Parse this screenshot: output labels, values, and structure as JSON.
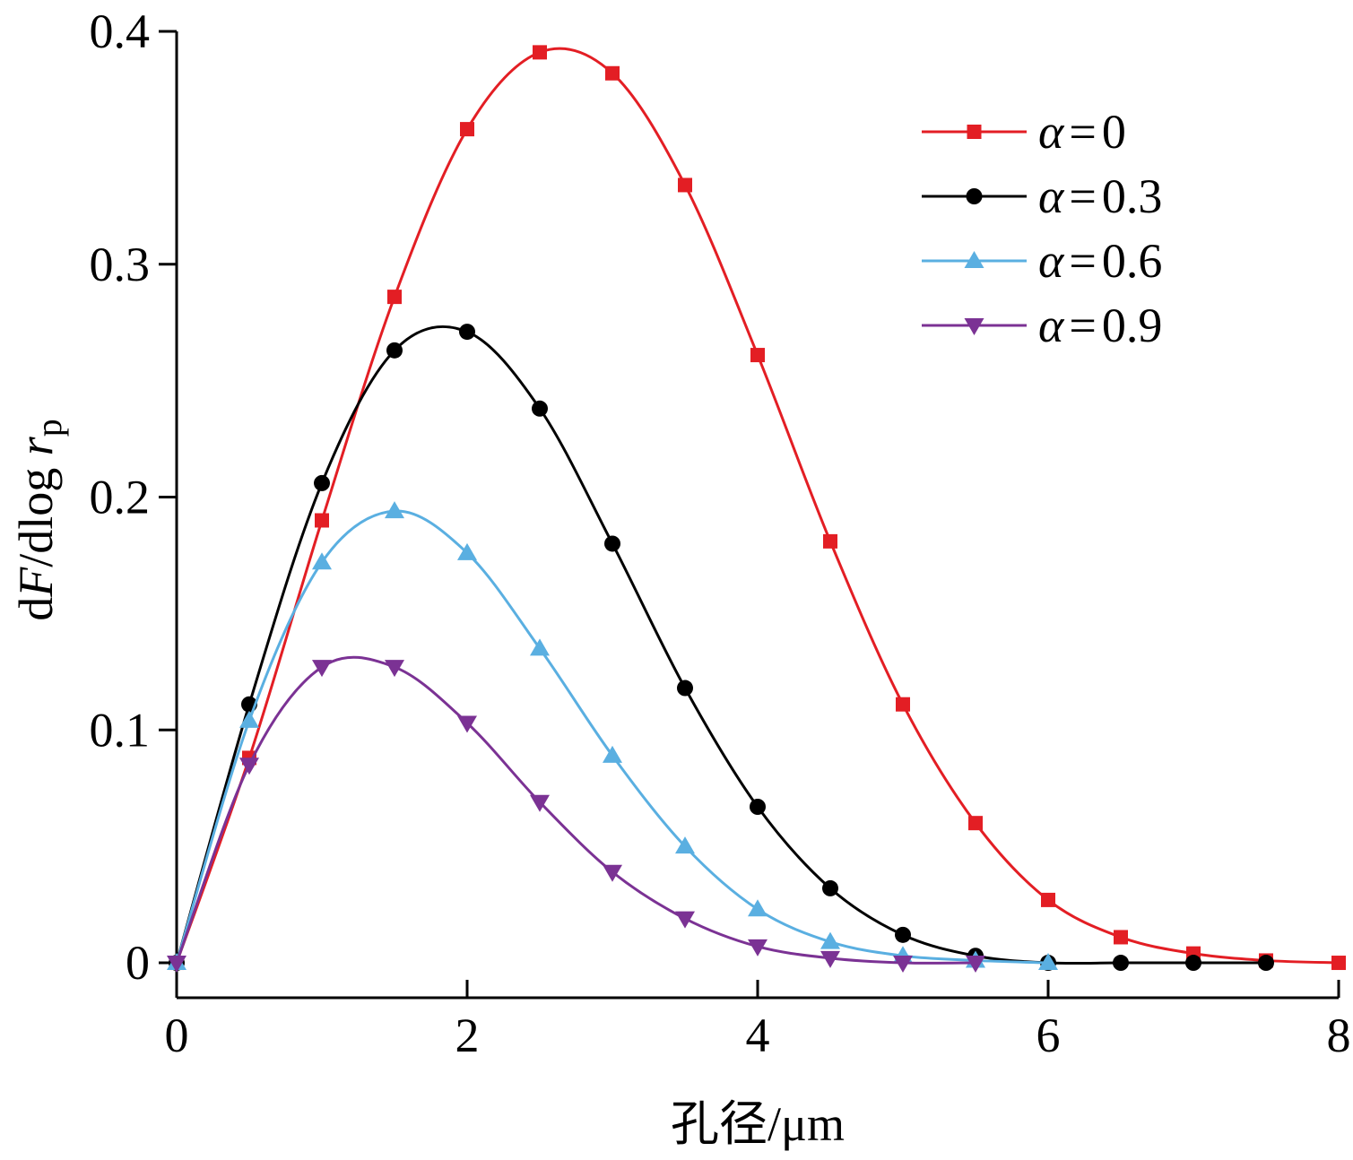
{
  "chart_data": {
    "type": "line",
    "xlabel": "孔径/μm",
    "ylabel_parts": [
      "d",
      "F",
      "/dlog ",
      "r",
      "p"
    ],
    "xlim": [
      0,
      8
    ],
    "ylim": [
      -0.015,
      0.4
    ],
    "x_ticks": [
      0,
      2,
      4,
      6,
      8
    ],
    "x_tick_labels": [
      "0",
      "2",
      "4",
      "6",
      "8"
    ],
    "y_ticks": [
      0,
      0.1,
      0.2,
      0.3,
      0.4
    ],
    "y_tick_labels": [
      "0",
      "0.1",
      "0.2",
      "0.3",
      "0.4"
    ],
    "grid": false,
    "legend_position": "top-right",
    "series": [
      {
        "name": "α = 0",
        "legend_symbol": "α",
        "legend_value": "0",
        "color": "#e31e24",
        "marker": "square",
        "points": [
          [
            0,
            0
          ],
          [
            0.5,
            0.088
          ],
          [
            1,
            0.19
          ],
          [
            1.5,
            0.286
          ],
          [
            2,
            0.358
          ],
          [
            2.5,
            0.391
          ],
          [
            3,
            0.382
          ],
          [
            3.5,
            0.334
          ],
          [
            4,
            0.261
          ],
          [
            4.5,
            0.181
          ],
          [
            5,
            0.111
          ],
          [
            5.5,
            0.06
          ],
          [
            6,
            0.027
          ],
          [
            6.5,
            0.011
          ],
          [
            7,
            0.004
          ],
          [
            7.5,
            0.001
          ],
          [
            8,
            0.0
          ]
        ]
      },
      {
        "name": "α = 0.3",
        "legend_symbol": "α",
        "legend_value": "0.3",
        "color": "#000000",
        "marker": "circle",
        "points": [
          [
            0,
            0
          ],
          [
            0.5,
            0.111
          ],
          [
            1,
            0.206
          ],
          [
            1.5,
            0.263
          ],
          [
            2,
            0.271
          ],
          [
            2.5,
            0.238
          ],
          [
            3,
            0.18
          ],
          [
            3.5,
            0.118
          ],
          [
            4,
            0.067
          ],
          [
            4.5,
            0.032
          ],
          [
            5,
            0.012
          ],
          [
            5.5,
            0.003
          ],
          [
            6,
            0.0
          ],
          [
            6.5,
            0.0
          ],
          [
            7,
            0.0
          ],
          [
            7.5,
            0.0
          ]
        ]
      },
      {
        "name": "α = 0.6",
        "legend_symbol": "α",
        "legend_value": "0.6",
        "color": "#5aafe1",
        "marker": "triangle-up",
        "points": [
          [
            0,
            0
          ],
          [
            0.5,
            0.104
          ],
          [
            1,
            0.172
          ],
          [
            1.5,
            0.194
          ],
          [
            2,
            0.176
          ],
          [
            2.5,
            0.135
          ],
          [
            3,
            0.089
          ],
          [
            3.5,
            0.05
          ],
          [
            4,
            0.023
          ],
          [
            4.5,
            0.009
          ],
          [
            5,
            0.003
          ],
          [
            5.5,
            0.001
          ],
          [
            6,
            0.0
          ]
        ]
      },
      {
        "name": "α = 0.9",
        "legend_symbol": "α",
        "legend_value": "0.9",
        "color": "#7b3294",
        "marker": "triangle-down",
        "points": [
          [
            0,
            0
          ],
          [
            0.5,
            0.085
          ],
          [
            1,
            0.127
          ],
          [
            1.5,
            0.127
          ],
          [
            2,
            0.103
          ],
          [
            2.5,
            0.069
          ],
          [
            3,
            0.039
          ],
          [
            3.5,
            0.019
          ],
          [
            4,
            0.007
          ],
          [
            4.5,
            0.002
          ],
          [
            5,
            0.0
          ],
          [
            5.5,
            0.0
          ]
        ]
      }
    ]
  }
}
